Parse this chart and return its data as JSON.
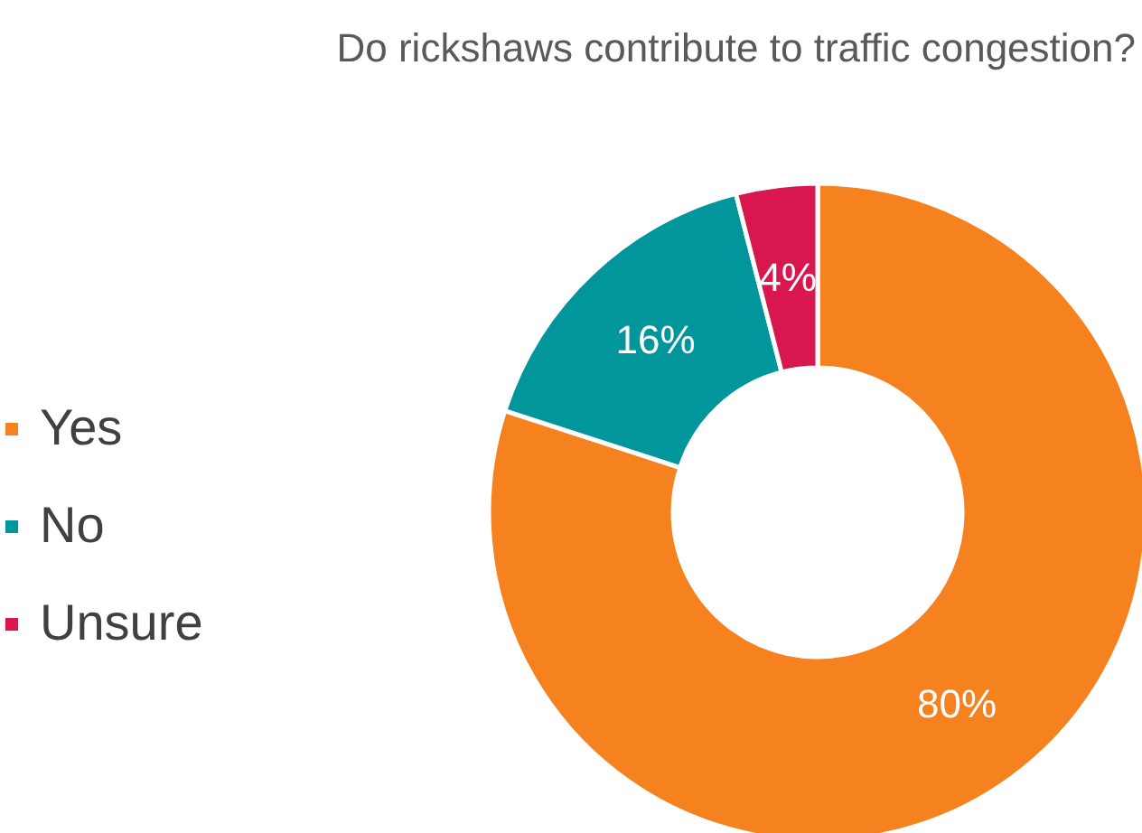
{
  "chart_data": {
    "type": "donut",
    "title": "Do rickshaws contribute to traffic congestion?",
    "categories": [
      "Yes",
      "No",
      "Unsure"
    ],
    "values": [
      80,
      16,
      4
    ],
    "colors": [
      "#f5821f",
      "#00969b",
      "#d7174d"
    ],
    "value_labels": [
      "80%",
      "16%",
      "4%"
    ],
    "legend": "left"
  }
}
